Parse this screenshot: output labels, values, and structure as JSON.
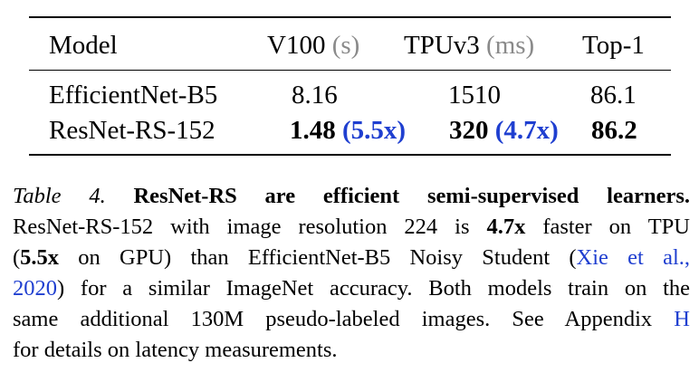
{
  "table": {
    "headers": {
      "model": "Model",
      "v100": "V100",
      "v100_unit": "(s)",
      "tpu": "TPUv3",
      "tpu_unit": "(ms)",
      "top1": "Top-1"
    },
    "rows": [
      {
        "model": "EfficientNet-B5",
        "v100": "8.16",
        "v100_speedup": "",
        "tpu": "1510",
        "tpu_speedup": "",
        "top1": "86.1"
      },
      {
        "model": "ResNet-RS-152",
        "v100": "1.48",
        "v100_speedup": "(5.5x)",
        "tpu": "320",
        "tpu_speedup": "(4.7x)",
        "top1": "86.2"
      }
    ]
  },
  "caption": {
    "label": "Table 4.",
    "title": "ResNet-RS are efficient semi-supervised learners.",
    "line2_a": "ResNet-RS-152 with image resolution 224 is",
    "line2_b": "4.7x",
    "line2_c": "faster on TPU",
    "line3_a": "(",
    "line3_b": "5.5x",
    "line3_c": "on GPU) than EfficientNet-B5 Noisy Student (",
    "line3_link": "Xie et al.,",
    "line4_link": "2020",
    "line4_b": ") for a similar ImageNet accuracy. Both models train on the",
    "line5": "same additional 130M pseudo-labeled images.  See Appendix",
    "line5_link": "H",
    "line6": "for details on latency measurements."
  },
  "colors": {
    "accent": "#1f3fd0",
    "unit_gray": "#8a8a8a",
    "text": "#000000"
  }
}
